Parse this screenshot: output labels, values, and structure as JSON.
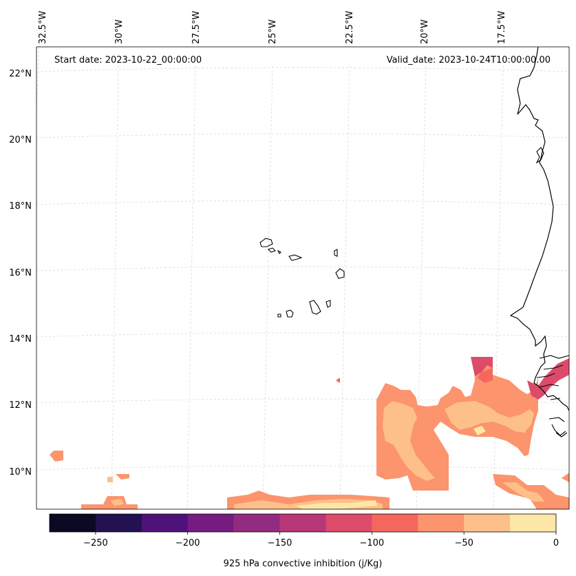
{
  "map": {
    "start_date": "Start date: 2023-10-22_00:00:00",
    "valid_date": "Valid_date: 2023-10-24T10:00:00.00",
    "longitude_labels": [
      "32.5°W",
      "30°W",
      "27.5°W",
      "25°W",
      "22.5°W",
      "20°W",
      "17.5°W"
    ],
    "latitude_labels": [
      "22°N",
      "20°N",
      "18°N",
      "16°N",
      "14°N",
      "12°N",
      "10°N"
    ],
    "coastline_color": "#000000",
    "gridline_color": "#cccccc"
  },
  "colorbar": {
    "label": "925 hPa convective inhibition (j/Kg)",
    "tick_labels": [
      "−250",
      "−200",
      "−150",
      "−100",
      "−50",
      "0"
    ],
    "colors": [
      "#0b0924",
      "#231151",
      "#4f127b",
      "#761c81",
      "#932b80",
      "#b73779",
      "#dc4b6a",
      "#f5675d",
      "#fc946d",
      "#fdc088",
      "#fde7a7"
    ]
  },
  "chart_data": {
    "type": "heatmap",
    "variable": "925 hPa convective inhibition",
    "units": "j/Kg",
    "color_levels": [
      -275,
      -250,
      -225,
      -200,
      -175,
      -150,
      -125,
      -100,
      -75,
      -50,
      -25,
      0
    ],
    "colorbar_ticks": [
      -250,
      -200,
      -150,
      -100,
      -50,
      0
    ],
    "lon_range": [
      -33,
      -15.5
    ],
    "lat_range": [
      8.9,
      22.8
    ],
    "gridlines": true,
    "approx_regions": [
      {
        "area": "south-east corner near the African coast",
        "lon_range": [
          -22,
          -15.5
        ],
        "lat_range": [
          9.5,
          13.5
        ],
        "cin_range": [
          -125,
          0
        ]
      },
      {
        "area": "southern map edge",
        "lon_range": [
          -32,
          -15.5
        ],
        "lat_range": [
          8.9,
          9.5
        ],
        "cin_range": [
          -75,
          0
        ]
      },
      {
        "area": "small patch in the west",
        "lon_range": [
          -32.5,
          -32
        ],
        "lat_range": [
          10.3,
          10.7
        ],
        "cin_range": [
          -75,
          -50
        ]
      }
    ]
  }
}
